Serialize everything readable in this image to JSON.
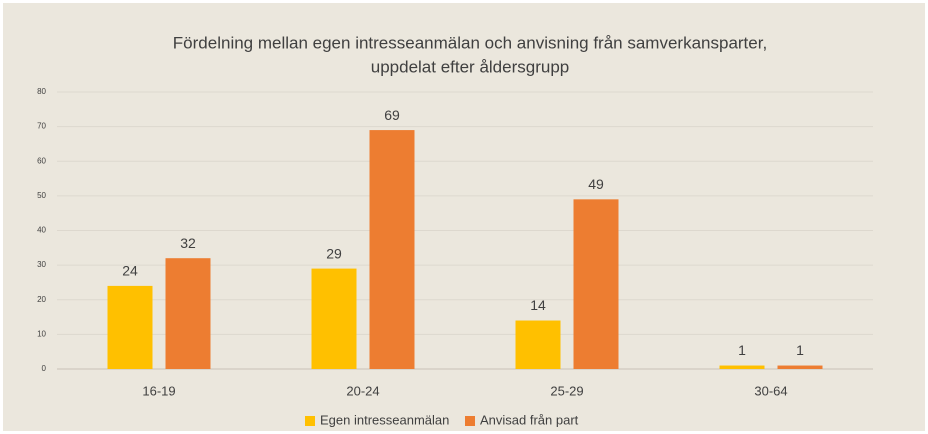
{
  "chart_data": {
    "type": "bar",
    "title": [
      "Fördelning mellan egen intresseanmälan och anvisning från samverkansparter,",
      "uppdelat efter åldersgrupp"
    ],
    "categories": [
      "16-19",
      "20-24",
      "25-29",
      "30-64"
    ],
    "series": [
      {
        "name": "Egen intresseanmälan",
        "color": "#ffc000",
        "values": [
          24,
          29,
          14,
          1
        ]
      },
      {
        "name": "Anvisad från part",
        "color": "#ed7d31",
        "values": [
          32,
          69,
          49,
          1
        ]
      }
    ],
    "ylim": [
      0,
      80
    ],
    "yticks": [
      0,
      10,
      20,
      30,
      40,
      50,
      60,
      70,
      80
    ],
    "grid": true,
    "legend": "bottom"
  }
}
